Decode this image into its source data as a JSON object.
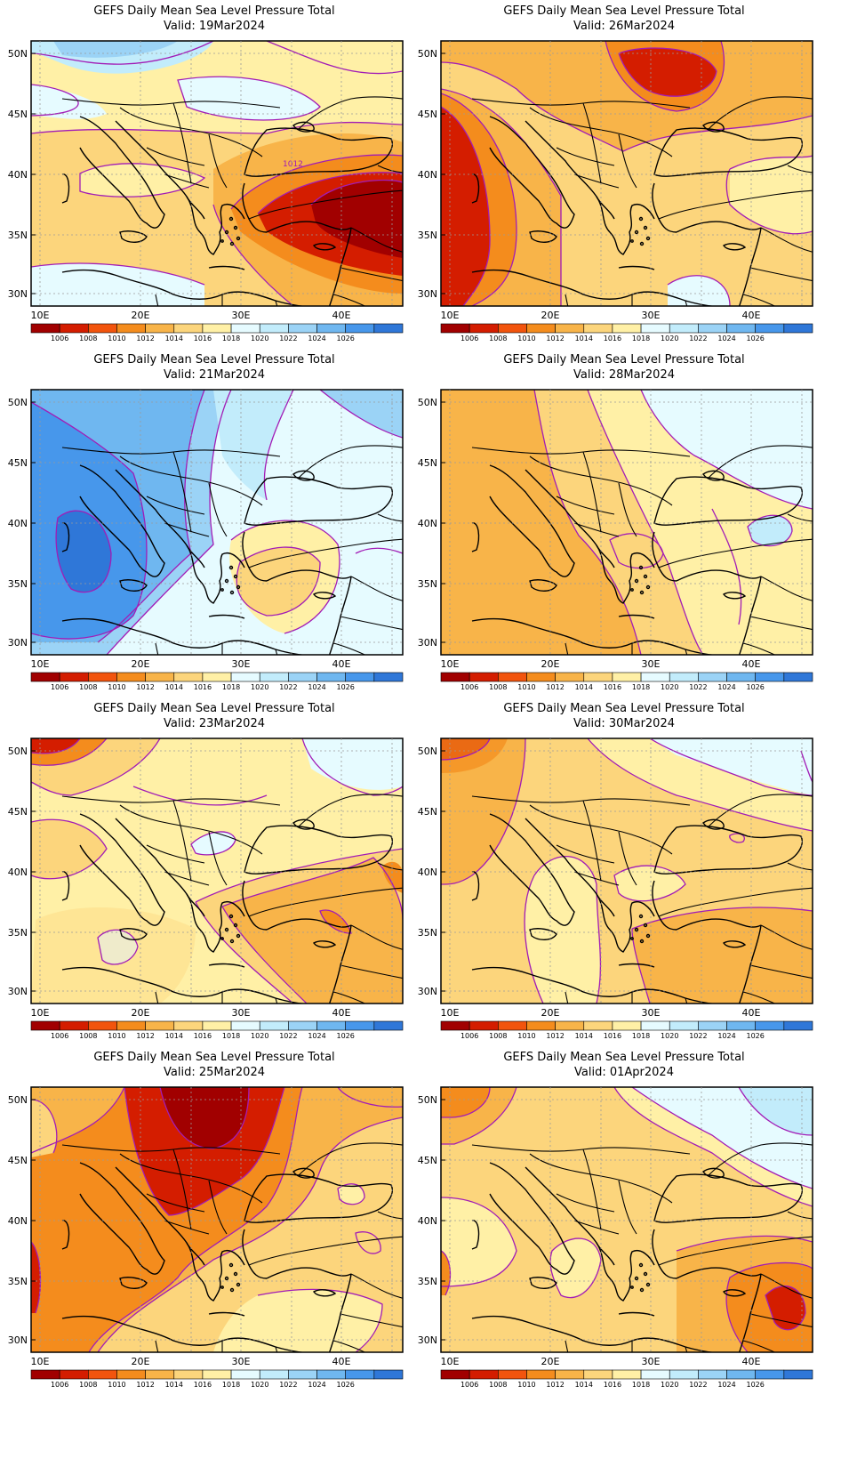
{
  "title_line1": "GEFS Daily Mean Sea Level Pressure Total",
  "colors": {
    "levels": [
      "#a10000",
      "#d41d00",
      "#f2540d",
      "#f48c1d",
      "#f8b449",
      "#fcd57c",
      "#fff0a6",
      "#e6fbff",
      "#c2ecfb",
      "#9bd3f6",
      "#6fb7f0",
      "#4797eb",
      "#2f77d8"
    ],
    "contour": "#a21cb6",
    "coast": "#000000"
  },
  "colorbar_labels": [
    "1006",
    "1008",
    "1010",
    "1012",
    "1014",
    "1016",
    "1018",
    "1020",
    "1022",
    "1024",
    "1026"
  ],
  "lat_ticks": [
    "50N",
    "45N",
    "40N",
    "35N",
    "30N"
  ],
  "lon_ticks": [
    "10E",
    "20E",
    "30E",
    "40E"
  ],
  "panels": [
    {
      "id": "p1",
      "valid": "Valid: 19Mar2024",
      "label": "1012"
    },
    {
      "id": "p2",
      "valid": "Valid: 26Mar2024"
    },
    {
      "id": "p3",
      "valid": "Valid: 21Mar2024"
    },
    {
      "id": "p4",
      "valid": "Valid: 28Mar2024"
    },
    {
      "id": "p5",
      "valid": "Valid: 23Mar2024"
    },
    {
      "id": "p6",
      "valid": "Valid: 30Mar2024"
    },
    {
      "id": "p7",
      "valid": "Valid: 25Mar2024"
    },
    {
      "id": "p8",
      "valid": "Valid: 01Apr2024"
    }
  ]
}
